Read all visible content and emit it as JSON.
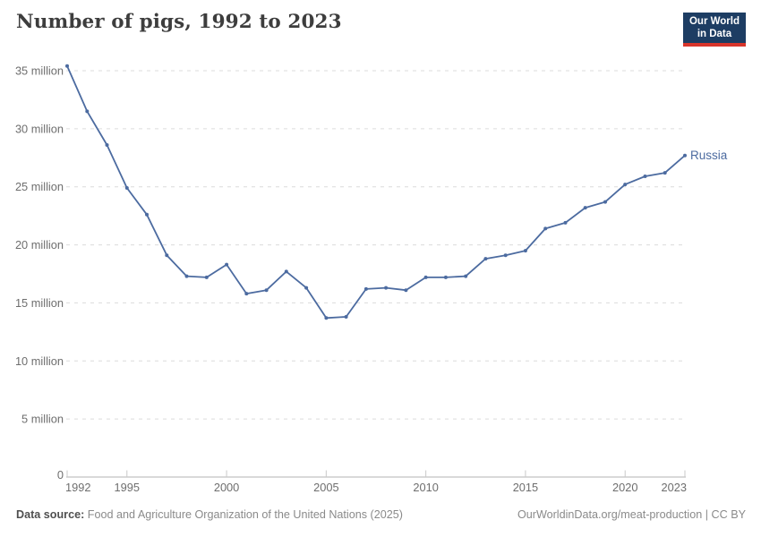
{
  "header": {
    "title": "Number of pigs, 1992 to 2023",
    "logo": {
      "line1": "Our World",
      "line2": "in Data"
    }
  },
  "chart_data": {
    "type": "line",
    "title": "Number of pigs, 1992 to 2023",
    "value_unit": "million pigs",
    "x": [
      1992,
      1993,
      1994,
      1995,
      1996,
      1997,
      1998,
      1999,
      2000,
      2001,
      2002,
      2003,
      2004,
      2005,
      2006,
      2007,
      2008,
      2009,
      2010,
      2011,
      2012,
      2013,
      2014,
      2015,
      2016,
      2017,
      2018,
      2019,
      2020,
      2021,
      2022,
      2023
    ],
    "series": [
      {
        "name": "Russia",
        "color": "#4c6ba0",
        "values": [
          35.4,
          31.5,
          28.6,
          24.9,
          22.6,
          19.1,
          17.3,
          17.2,
          18.3,
          15.8,
          16.1,
          17.7,
          16.3,
          13.7,
          13.8,
          16.2,
          16.3,
          16.1,
          17.2,
          17.2,
          17.3,
          18.8,
          19.1,
          19.5,
          21.4,
          21.9,
          23.2,
          23.7,
          25.2,
          25.9,
          26.2,
          27.7
        ]
      }
    ],
    "xlim": [
      1992,
      2023
    ],
    "ylim": [
      0,
      35
    ],
    "x_ticks": [
      1992,
      1995,
      2000,
      2005,
      2010,
      2015,
      2020,
      2023
    ],
    "y_ticks": [
      {
        "value": 0,
        "label": "0"
      },
      {
        "value": 5,
        "label": "5 million"
      },
      {
        "value": 10,
        "label": "10 million"
      },
      {
        "value": 15,
        "label": "15 million"
      },
      {
        "value": 20,
        "label": "20 million"
      },
      {
        "value": 25,
        "label": "25 million"
      },
      {
        "value": 30,
        "label": "30 million"
      },
      {
        "value": 35,
        "label": "35 million"
      }
    ],
    "grid": true,
    "legend_position": "end-of-line"
  },
  "footer": {
    "data_source_label": "Data source:",
    "data_source_value": "Food and Agriculture Organization of the United Nations (2025)",
    "link": "OurWorldinData.org/meat-production",
    "separator": " | ",
    "license": "CC BY"
  },
  "colors": {
    "line": "#4c6ba0",
    "logo_bg": "#1d3d63",
    "logo_stripe": "#d8352b",
    "gridline": "#dcdcdc",
    "axis": "#b3b3b3",
    "tick_label": "#6e6e6e",
    "title_text": "#3d3d3d"
  }
}
